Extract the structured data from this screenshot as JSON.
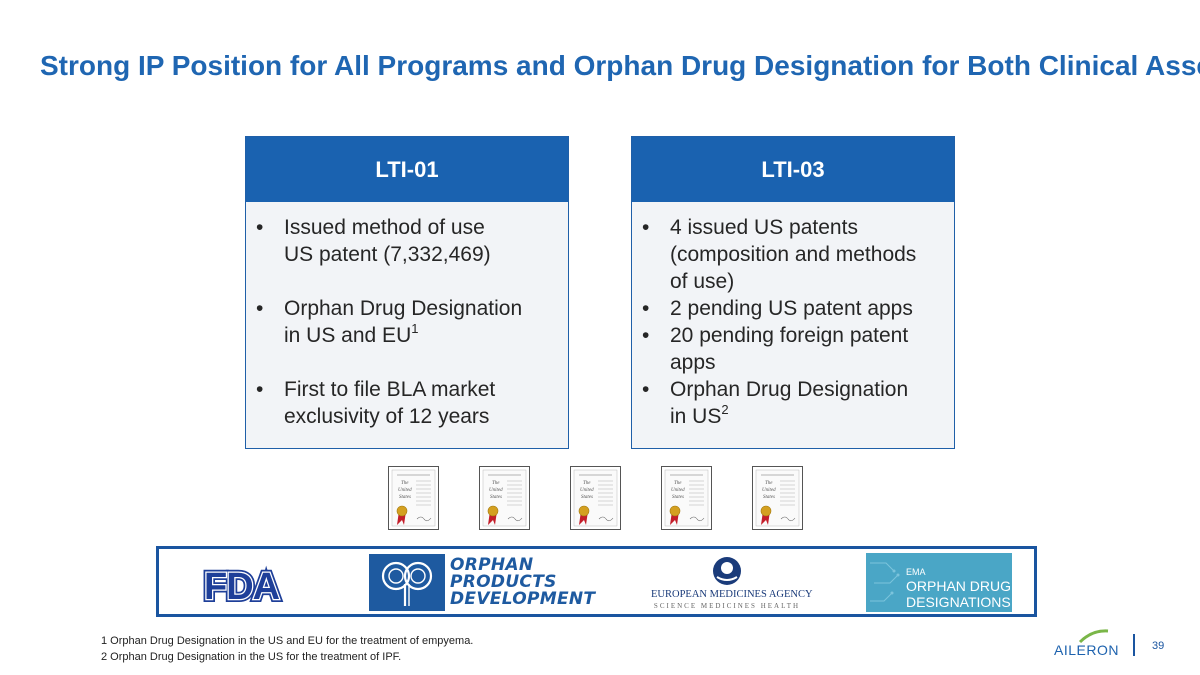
{
  "title": "Strong IP Position for All Programs and Orphan Drug Designation for Both Clinical Assets",
  "cards": {
    "lti01": {
      "header": "LTI-01",
      "bullets": [
        {
          "line1": "Issued method of use",
          "line2": "US patent (7,332,469)"
        },
        {
          "line1": "Orphan Drug Designation",
          "line2": "in US and EU",
          "sup": "1"
        },
        {
          "line1": "First to file BLA market",
          "line2": "exclusivity of 12 years"
        }
      ]
    },
    "lti03": {
      "header": "LTI-03",
      "bullets": [
        {
          "text": "4 issued US patents (composition and methods of use)"
        },
        {
          "text": "2 pending US patent apps"
        },
        {
          "text": "20 pending foreign patent apps"
        },
        {
          "line1": "Orphan Drug Designation",
          "line2": "in US",
          "sup": "2"
        }
      ]
    }
  },
  "logos": {
    "fda": "FDA",
    "opd": {
      "line1": "ORPHAN",
      "line2": "PRODUCTS",
      "line3": "DEVELOPMENT"
    },
    "ema": {
      "name": "EUROPEAN MEDICINES AGENCY",
      "tagline": "SCIENCE  MEDICINES  HEALTH"
    },
    "orphan_designations": {
      "label": "EMA",
      "line1": "ORPHAN DRUG",
      "line2": "DESIGNATIONS"
    }
  },
  "footnotes": [
    "1 Orphan Drug Designation in the US and EU for the treatment of empyema.",
    "2 Orphan Drug Designation in the US for the treatment of IPF."
  ],
  "brand": "AILERON",
  "page_number": "39",
  "colors": {
    "primary": "#1a62b0",
    "card_bg": "#f2f4f7",
    "title": "#1f66b2"
  }
}
